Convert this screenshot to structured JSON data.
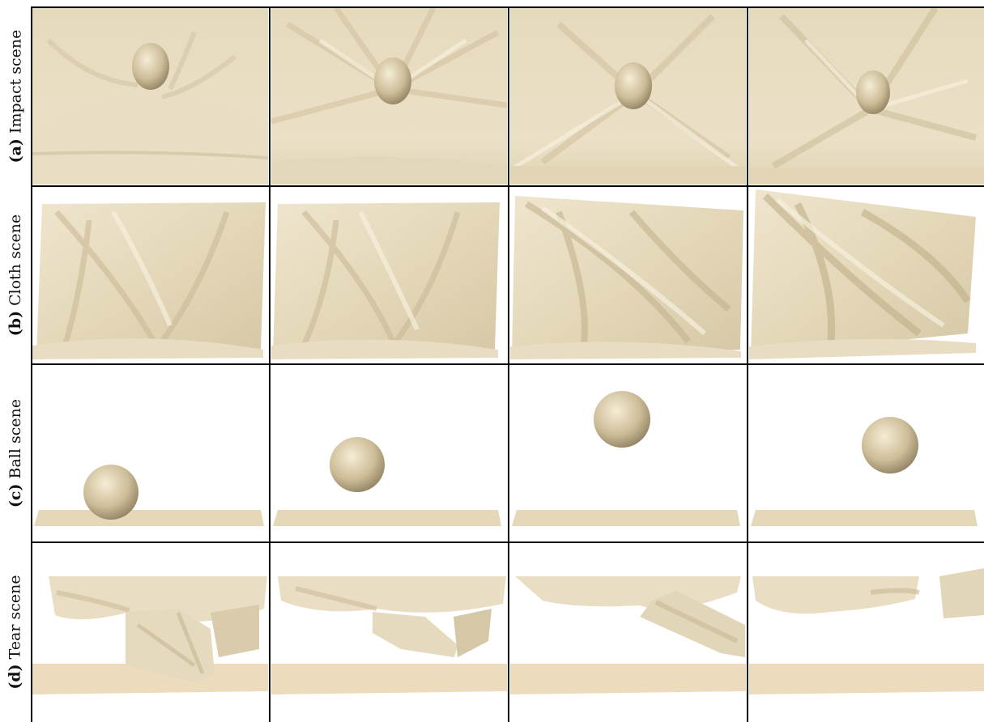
{
  "rows": [
    {
      "tag": "(a)",
      "label": "Impact scene"
    },
    {
      "tag": "(b)",
      "label": "Cloth scene"
    },
    {
      "tag": "(c)",
      "label": "Ball scene"
    },
    {
      "tag": "(d)",
      "label": "Tear scene"
    }
  ],
  "colors": {
    "surface": "#ebe0c6",
    "shadow": "#c9b995",
    "highlight": "#f8f1e1",
    "background": "#ffffff",
    "grid_lines": "#000000"
  }
}
